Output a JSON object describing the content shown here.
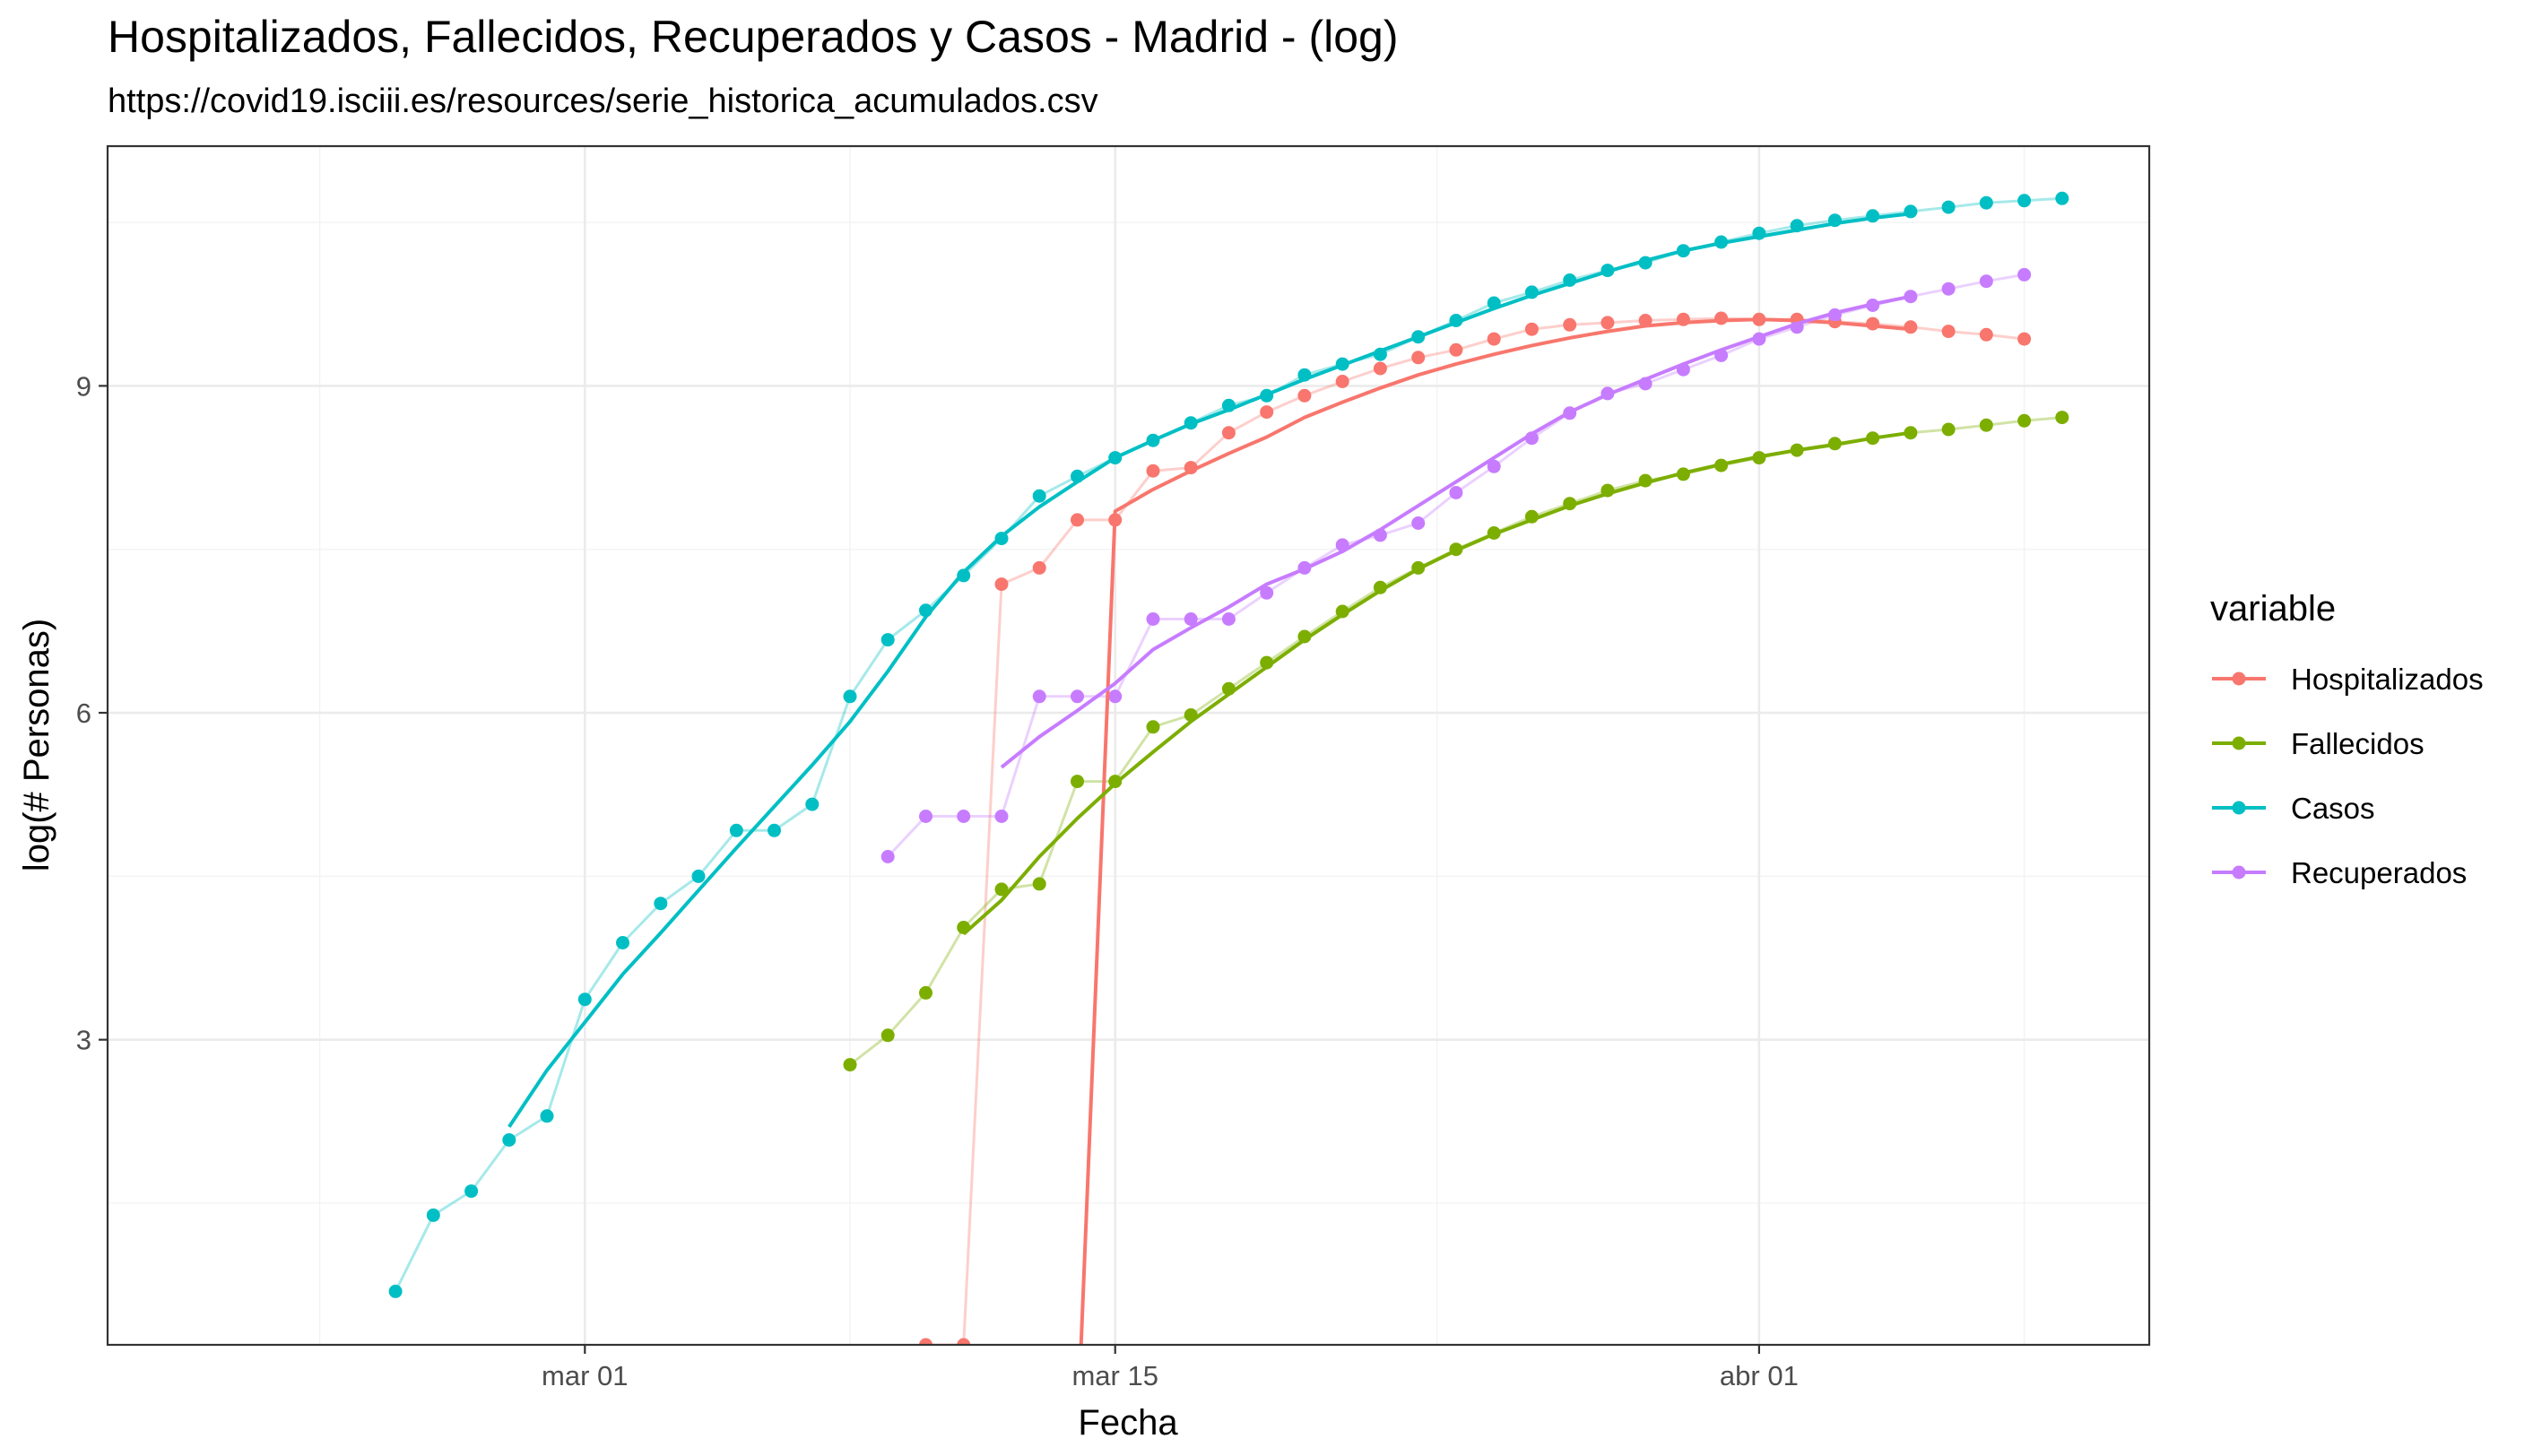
{
  "chart_data": {
    "type": "line",
    "title": "Hospitalizados, Fallecidos, Recuperados y Casos - Madrid - (log)",
    "subtitle": "https://covid19.isciii.es/resources/serie_historica_acumulados.csv",
    "xlabel": "Fecha",
    "ylabel": "log(# Personas)",
    "x_ticks": [
      {
        "day": 0,
        "label": "mar 01"
      },
      {
        "day": 14,
        "label": "mar 15"
      },
      {
        "day": 31,
        "label": "abr 01"
      }
    ],
    "y_ticks": [
      {
        "value": 3,
        "label": "3"
      },
      {
        "value": 6,
        "label": "6"
      },
      {
        "value": 9,
        "label": "9"
      }
    ],
    "xlim": [
      -12.6,
      41.3
    ],
    "ylim": [
      0.2,
      11.2
    ],
    "grid": true,
    "legend_title": "variable",
    "legend_position": "right",
    "note": "x = days relative to mar 01 (day 0)",
    "series": [
      {
        "name": "Hospitalizados",
        "color": "#F8766D",
        "points": [
          [
            9,
            0.2
          ],
          [
            10,
            0.2
          ],
          [
            11,
            7.18
          ],
          [
            12,
            7.33
          ],
          [
            13,
            7.77
          ],
          [
            14,
            7.77
          ],
          [
            15,
            8.22
          ],
          [
            16,
            8.25
          ],
          [
            17,
            8.57
          ],
          [
            18,
            8.76
          ],
          [
            19,
            8.91
          ],
          [
            20,
            9.04
          ],
          [
            21,
            9.16
          ],
          [
            22,
            9.26
          ],
          [
            23,
            9.33
          ],
          [
            24,
            9.43
          ],
          [
            25,
            9.52
          ],
          [
            26,
            9.56
          ],
          [
            27,
            9.58
          ],
          [
            28,
            9.6
          ],
          [
            29,
            9.61
          ],
          [
            30,
            9.62
          ],
          [
            31,
            9.61
          ],
          [
            32,
            9.61
          ],
          [
            33,
            9.59
          ],
          [
            34,
            9.57
          ],
          [
            35,
            9.54
          ],
          [
            36,
            9.5
          ],
          [
            37,
            9.47
          ],
          [
            38,
            9.43
          ]
        ],
        "smooth": [
          [
            13.1,
            0.2
          ],
          [
            14,
            7.85
          ],
          [
            15,
            8.05
          ],
          [
            16,
            8.22
          ],
          [
            17,
            8.38
          ],
          [
            18,
            8.53
          ],
          [
            19,
            8.71
          ],
          [
            20,
            8.85
          ],
          [
            21,
            8.98
          ],
          [
            22,
            9.1
          ],
          [
            23,
            9.2
          ],
          [
            24,
            9.29
          ],
          [
            25,
            9.37
          ],
          [
            26,
            9.44
          ],
          [
            27,
            9.5
          ],
          [
            28,
            9.55
          ],
          [
            29,
            9.58
          ],
          [
            30,
            9.6
          ],
          [
            31,
            9.61
          ],
          [
            32,
            9.6
          ],
          [
            33,
            9.58
          ],
          [
            34,
            9.55
          ],
          [
            35,
            9.52
          ]
        ]
      },
      {
        "name": "Fallecidos",
        "color": "#7CAE00",
        "points": [
          [
            7,
            2.77
          ],
          [
            8,
            3.04
          ],
          [
            9,
            3.43
          ],
          [
            10,
            4.03
          ],
          [
            11,
            4.38
          ],
          [
            12,
            4.43
          ],
          [
            13,
            5.37
          ],
          [
            14,
            5.37
          ],
          [
            15,
            5.87
          ],
          [
            16,
            5.98
          ],
          [
            17,
            6.22
          ],
          [
            18,
            6.46
          ],
          [
            19,
            6.7
          ],
          [
            20,
            6.93
          ],
          [
            21,
            7.15
          ],
          [
            22,
            7.33
          ],
          [
            23,
            7.5
          ],
          [
            24,
            7.65
          ],
          [
            25,
            7.8
          ],
          [
            26,
            7.92
          ],
          [
            27,
            8.04
          ],
          [
            28,
            8.13
          ],
          [
            29,
            8.19
          ],
          [
            30,
            8.27
          ],
          [
            31,
            8.34
          ],
          [
            32,
            8.41
          ],
          [
            33,
            8.47
          ],
          [
            34,
            8.52
          ],
          [
            35,
            8.57
          ],
          [
            36,
            8.6
          ],
          [
            37,
            8.64
          ],
          [
            38,
            8.68
          ],
          [
            39,
            8.71
          ]
        ],
        "smooth": [
          [
            10,
            3.97
          ],
          [
            11,
            4.28
          ],
          [
            12,
            4.68
          ],
          [
            13,
            5.03
          ],
          [
            14,
            5.35
          ],
          [
            15,
            5.64
          ],
          [
            16,
            5.92
          ],
          [
            17,
            6.17
          ],
          [
            18,
            6.42
          ],
          [
            19,
            6.67
          ],
          [
            20,
            6.9
          ],
          [
            21,
            7.12
          ],
          [
            22,
            7.32
          ],
          [
            23,
            7.49
          ],
          [
            24,
            7.64
          ],
          [
            25,
            7.77
          ],
          [
            26,
            7.9
          ],
          [
            27,
            8.01
          ],
          [
            28,
            8.11
          ],
          [
            29,
            8.2
          ],
          [
            30,
            8.28
          ],
          [
            31,
            8.35
          ],
          [
            32,
            8.41
          ],
          [
            33,
            8.46
          ],
          [
            34,
            8.52
          ],
          [
            35,
            8.57
          ]
        ]
      },
      {
        "name": "Casos",
        "color": "#00BFC4",
        "points": [
          [
            -5,
            0.69
          ],
          [
            -4,
            1.39
          ],
          [
            -3,
            1.61
          ],
          [
            -2,
            2.08
          ],
          [
            -1,
            2.3
          ],
          [
            0,
            3.37
          ],
          [
            1,
            3.89
          ],
          [
            2,
            4.25
          ],
          [
            3,
            4.5
          ],
          [
            4,
            4.92
          ],
          [
            5,
            4.92
          ],
          [
            6,
            5.16
          ],
          [
            7,
            6.15
          ],
          [
            8,
            6.67
          ],
          [
            9,
            6.94
          ],
          [
            10,
            7.26
          ],
          [
            11,
            7.6
          ],
          [
            12,
            7.99
          ],
          [
            13,
            8.17
          ],
          [
            14,
            8.34
          ],
          [
            15,
            8.5
          ],
          [
            16,
            8.66
          ],
          [
            17,
            8.82
          ],
          [
            18,
            8.91
          ],
          [
            19,
            9.1
          ],
          [
            20,
            9.2
          ],
          [
            21,
            9.29
          ],
          [
            22,
            9.45
          ],
          [
            23,
            9.6
          ],
          [
            24,
            9.76
          ],
          [
            25,
            9.86
          ],
          [
            26,
            9.97
          ],
          [
            27,
            10.06
          ],
          [
            28,
            10.13
          ],
          [
            29,
            10.24
          ],
          [
            30,
            10.32
          ],
          [
            31,
            10.4
          ],
          [
            32,
            10.47
          ],
          [
            33,
            10.52
          ],
          [
            34,
            10.56
          ],
          [
            35,
            10.6
          ],
          [
            36,
            10.64
          ],
          [
            37,
            10.68
          ],
          [
            38,
            10.7
          ],
          [
            39,
            10.72
          ]
        ],
        "smooth": [
          [
            -2,
            2.2
          ],
          [
            -1,
            2.72
          ],
          [
            0,
            3.16
          ],
          [
            1,
            3.6
          ],
          [
            2,
            3.98
          ],
          [
            3,
            4.37
          ],
          [
            4,
            4.76
          ],
          [
            5,
            5.14
          ],
          [
            6,
            5.52
          ],
          [
            7,
            5.92
          ],
          [
            8,
            6.38
          ],
          [
            9,
            6.88
          ],
          [
            10,
            7.29
          ],
          [
            11,
            7.62
          ],
          [
            12,
            7.89
          ],
          [
            13,
            8.12
          ],
          [
            14,
            8.34
          ],
          [
            15,
            8.5
          ],
          [
            16,
            8.65
          ],
          [
            17,
            8.78
          ],
          [
            18,
            8.92
          ],
          [
            19,
            9.06
          ],
          [
            20,
            9.19
          ],
          [
            21,
            9.32
          ],
          [
            22,
            9.45
          ],
          [
            23,
            9.58
          ],
          [
            24,
            9.71
          ],
          [
            25,
            9.83
          ],
          [
            26,
            9.94
          ],
          [
            27,
            10.05
          ],
          [
            28,
            10.15
          ],
          [
            29,
            10.24
          ],
          [
            30,
            10.31
          ],
          [
            31,
            10.37
          ],
          [
            32,
            10.43
          ],
          [
            33,
            10.49
          ],
          [
            34,
            10.54
          ],
          [
            35,
            10.58
          ]
        ]
      },
      {
        "name": "Recuperados",
        "color": "#C77CFF",
        "points": [
          [
            8,
            4.68
          ],
          [
            9,
            5.05
          ],
          [
            10,
            5.05
          ],
          [
            11,
            5.05
          ],
          [
            12,
            6.15
          ],
          [
            13,
            6.15
          ],
          [
            14,
            6.15
          ],
          [
            15,
            6.86
          ],
          [
            16,
            6.86
          ],
          [
            17,
            6.86
          ],
          [
            18,
            7.1
          ],
          [
            19,
            7.33
          ],
          [
            20,
            7.54
          ],
          [
            21,
            7.63
          ],
          [
            22,
            7.74
          ],
          [
            23,
            8.02
          ],
          [
            24,
            8.26
          ],
          [
            25,
            8.52
          ],
          [
            26,
            8.75
          ],
          [
            27,
            8.93
          ],
          [
            28,
            9.02
          ],
          [
            29,
            9.15
          ],
          [
            30,
            9.28
          ],
          [
            31,
            9.43
          ],
          [
            32,
            9.54
          ],
          [
            33,
            9.65
          ],
          [
            34,
            9.74
          ],
          [
            35,
            9.82
          ],
          [
            36,
            9.89
          ],
          [
            37,
            9.96
          ],
          [
            38,
            10.02
          ]
        ],
        "smooth": [
          [
            11,
            5.5
          ],
          [
            12,
            5.78
          ],
          [
            13,
            6.02
          ],
          [
            14,
            6.27
          ],
          [
            15,
            6.58
          ],
          [
            16,
            6.78
          ],
          [
            17,
            6.97
          ],
          [
            18,
            7.18
          ],
          [
            19,
            7.32
          ],
          [
            20,
            7.48
          ],
          [
            21,
            7.68
          ],
          [
            22,
            7.9
          ],
          [
            23,
            8.12
          ],
          [
            24,
            8.34
          ],
          [
            25,
            8.56
          ],
          [
            26,
            8.76
          ],
          [
            27,
            8.92
          ],
          [
            28,
            9.06
          ],
          [
            29,
            9.2
          ],
          [
            30,
            9.33
          ],
          [
            31,
            9.45
          ],
          [
            32,
            9.57
          ],
          [
            33,
            9.67
          ],
          [
            34,
            9.75
          ],
          [
            35,
            9.82
          ]
        ]
      }
    ]
  }
}
